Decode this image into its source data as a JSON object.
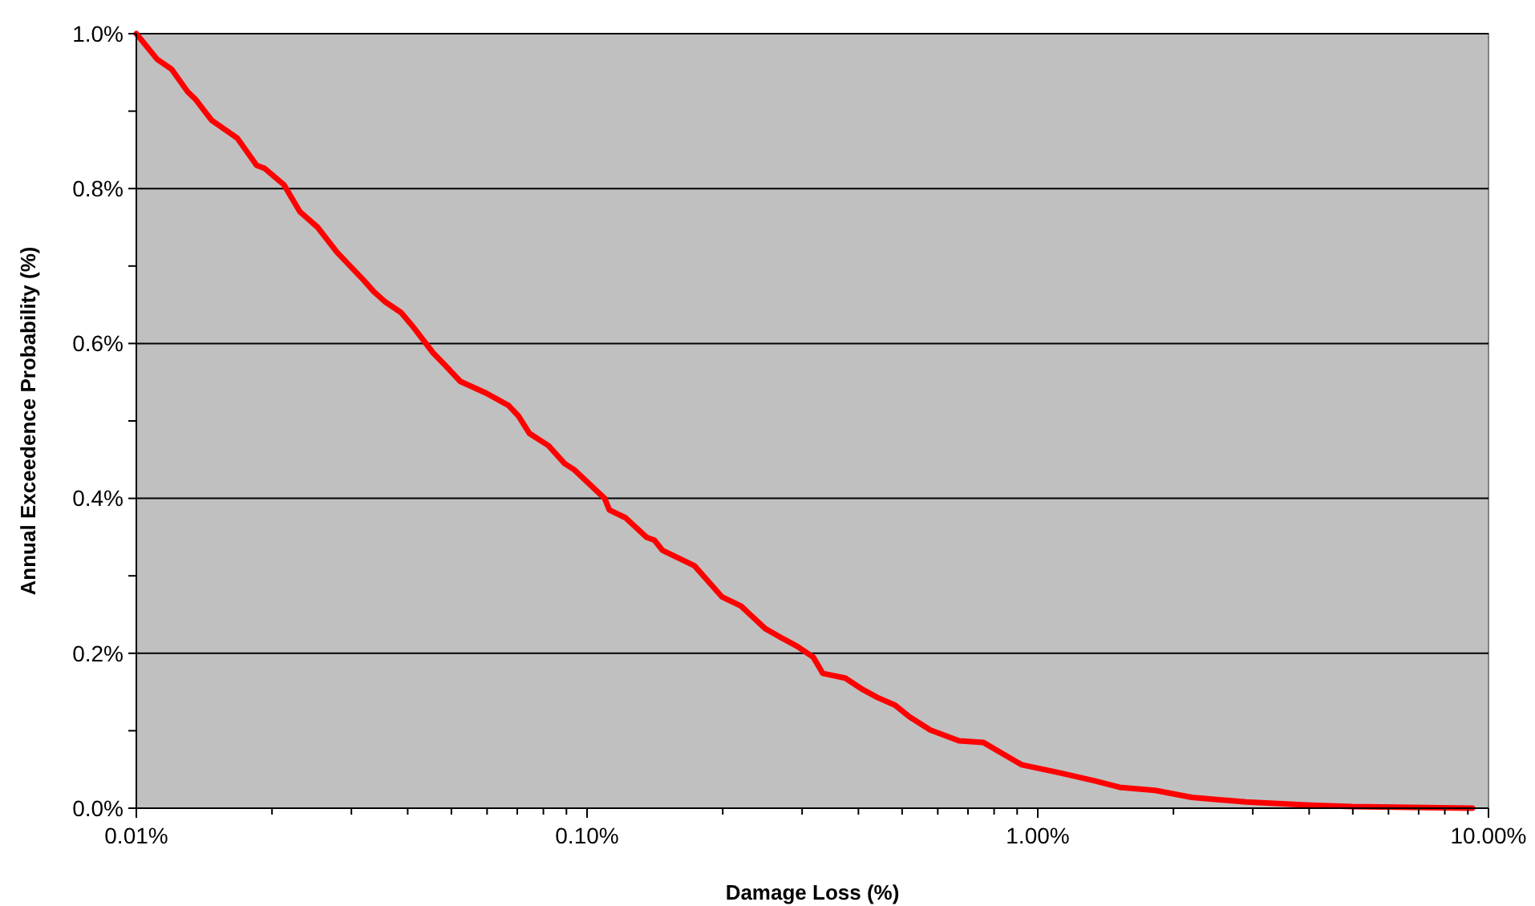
{
  "chart_data": {
    "type": "line",
    "xlabel": "Damage Loss (%)",
    "ylabel": "Annual Exceedence Probability (%)",
    "log": "x",
    "grid": "y",
    "marker": "none",
    "line_style": "solid",
    "xlim": [
      0.01,
      10
    ],
    "ylim": [
      0,
      1
    ],
    "xticks": [
      {
        "value": 0.01,
        "label": "0.01%"
      },
      {
        "value": 0.02,
        "label": null
      },
      {
        "value": 0.03,
        "label": null
      },
      {
        "value": 0.04,
        "label": null
      },
      {
        "value": 0.05,
        "label": null
      },
      {
        "value": 0.06,
        "label": null
      },
      {
        "value": 0.07,
        "label": null
      },
      {
        "value": 0.08,
        "label": null
      },
      {
        "value": 0.09,
        "label": null
      },
      {
        "value": 0.1,
        "label": "0.10%"
      },
      {
        "value": 0.2,
        "label": null
      },
      {
        "value": 0.3,
        "label": null
      },
      {
        "value": 0.4,
        "label": null
      },
      {
        "value": 0.5,
        "label": null
      },
      {
        "value": 0.6,
        "label": null
      },
      {
        "value": 0.7,
        "label": null
      },
      {
        "value": 0.8,
        "label": null
      },
      {
        "value": 0.9,
        "label": null
      },
      {
        "value": 1,
        "label": "1.00%"
      },
      {
        "value": 2,
        "label": null
      },
      {
        "value": 3,
        "label": null
      },
      {
        "value": 4,
        "label": null
      },
      {
        "value": 5,
        "label": null
      },
      {
        "value": 6,
        "label": null
      },
      {
        "value": 7,
        "label": null
      },
      {
        "value": 8,
        "label": null
      },
      {
        "value": 9,
        "label": null
      },
      {
        "value": 10,
        "label": "10.00%"
      }
    ],
    "yticks": [
      {
        "value": 0,
        "label": "0.0%"
      },
      {
        "value": 0.1,
        "label": null
      },
      {
        "value": 0.2,
        "label": "0.2%"
      },
      {
        "value": 0.3,
        "label": null
      },
      {
        "value": 0.4,
        "label": "0.4%"
      },
      {
        "value": 0.5,
        "label": null
      },
      {
        "value": 0.6,
        "label": "0.6%"
      },
      {
        "value": 0.7,
        "label": null
      },
      {
        "value": 0.8,
        "label": "0.8%"
      },
      {
        "value": 0.9,
        "label": null
      },
      {
        "value": 1,
        "label": "1.0%"
      }
    ],
    "x": [
      0.01,
      0.01112,
      0.01198,
      0.013,
      0.01354,
      0.0147,
      0.01676,
      0.01849,
      0.01927,
      0.02125,
      0.02307,
      0.02525,
      0.02785,
      0.03202,
      0.03363,
      0.03561,
      0.03866,
      0.04093,
      0.04553,
      0.04824,
      0.05235,
      0.05969,
      0.06693,
      0.07031,
      0.07446,
      0.08214,
      0.08916,
      0.09366,
      0.1094,
      0.1121,
      0.1217,
      0.1354,
      0.1411,
      0.147,
      0.1731,
      0.1991,
      0.2196,
      0.2483,
      0.2718,
      0.2926,
      0.3176,
      0.3335,
      0.3741,
      0.4094,
      0.4407,
      0.4823,
      0.5192,
      0.5775,
      0.6693,
      0.7568,
      0.8488,
      0.9214,
      1.113,
      1.343,
      1.519,
      1.819,
      2.196,
      2.901,
      4.027,
      4.984,
      9.214
    ],
    "series": [
      {
        "color": "#ff0000",
        "values": [
          1.0,
          0.967,
          0.954,
          0.925,
          0.915,
          0.888,
          0.865,
          0.83,
          0.826,
          0.805,
          0.77,
          0.75,
          0.718,
          0.681,
          0.667,
          0.654,
          0.64,
          0.623,
          0.588,
          0.573,
          0.551,
          0.536,
          0.52,
          0.507,
          0.484,
          0.468,
          0.445,
          0.437,
          0.4,
          0.385,
          0.375,
          0.35,
          0.346,
          0.333,
          0.313,
          0.273,
          0.261,
          0.232,
          0.219,
          0.209,
          0.195,
          0.174,
          0.168,
          0.153,
          0.143,
          0.133,
          0.118,
          0.101,
          0.087,
          0.085,
          0.068,
          0.056,
          0.046,
          0.035,
          0.027,
          0.023,
          0.014,
          0.008,
          0.004,
          0.002,
          0.0
        ]
      }
    ]
  }
}
